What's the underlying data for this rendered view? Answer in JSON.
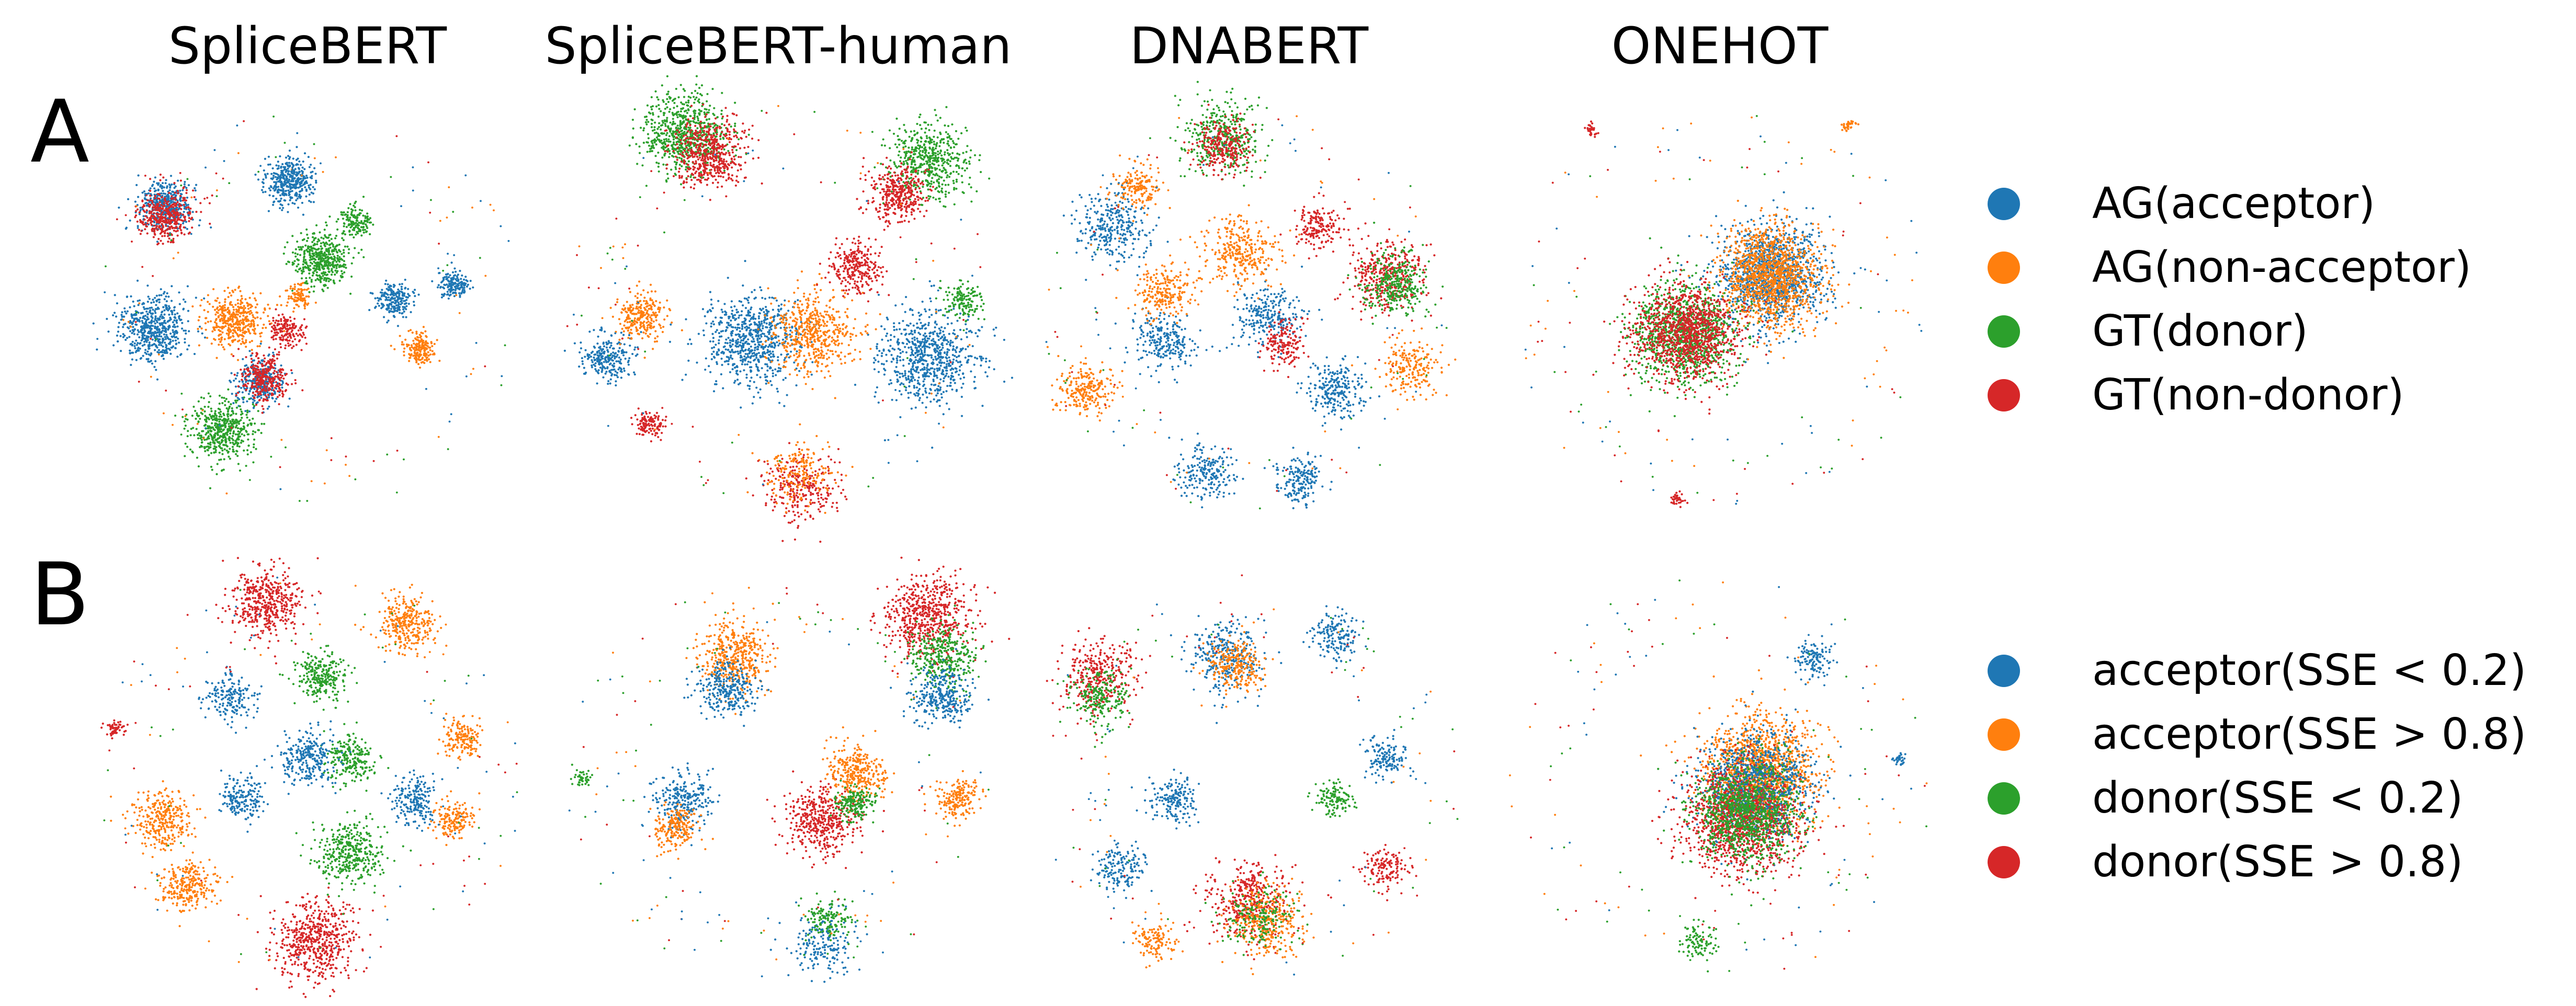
{
  "columns": [
    "SpliceBERT",
    "SpliceBERT-human",
    "DNABERT",
    "ONEHOT"
  ],
  "colors": {
    "blue": "#1f77b4",
    "orange": "#ff7f0e",
    "green": "#2ca02c",
    "red": "#d62728"
  },
  "chart_data": [
    {
      "type": "scatter",
      "panel": "A",
      "title": "",
      "xlabel": "",
      "ylabel": "",
      "axes": "off",
      "grid": false,
      "legend_placement": "right",
      "columns": [
        "SpliceBERT",
        "SpliceBERT-human",
        "DNABERT",
        "ONEHOT"
      ],
      "series": [
        {
          "name": "AG(acceptor)",
          "color": "#1f77b4"
        },
        {
          "name": "AG(non-acceptor)",
          "color": "#ff7f0e"
        },
        {
          "name": "GT(donor)",
          "color": "#2ca02c"
        },
        {
          "name": "GT(non-donor)",
          "color": "#d62728"
        }
      ],
      "clusters": {
        "SpliceBERT": [
          {
            "x": 0.17,
            "y": 0.25,
            "r": 0.055,
            "s": 0,
            "n": 420
          },
          {
            "x": 0.46,
            "y": 0.19,
            "r": 0.05,
            "s": 0,
            "n": 380
          },
          {
            "x": 0.14,
            "y": 0.55,
            "r": 0.075,
            "s": 0,
            "n": 560
          },
          {
            "x": 0.39,
            "y": 0.68,
            "r": 0.05,
            "s": 0,
            "n": 300
          },
          {
            "x": 0.7,
            "y": 0.48,
            "r": 0.04,
            "s": 0,
            "n": 220
          },
          {
            "x": 0.84,
            "y": 0.44,
            "r": 0.03,
            "s": 0,
            "n": 160
          },
          {
            "x": 0.33,
            "y": 0.53,
            "r": 0.06,
            "s": 1,
            "n": 420
          },
          {
            "x": 0.76,
            "y": 0.6,
            "r": 0.035,
            "s": 1,
            "n": 180
          },
          {
            "x": 0.48,
            "y": 0.47,
            "r": 0.025,
            "s": 1,
            "n": 90
          },
          {
            "x": 0.53,
            "y": 0.38,
            "r": 0.06,
            "s": 2,
            "n": 460
          },
          {
            "x": 0.3,
            "y": 0.8,
            "r": 0.065,
            "s": 2,
            "n": 500
          },
          {
            "x": 0.61,
            "y": 0.29,
            "r": 0.035,
            "s": 2,
            "n": 150
          },
          {
            "x": 0.17,
            "y": 0.27,
            "r": 0.055,
            "s": 3,
            "n": 380
          },
          {
            "x": 0.4,
            "y": 0.67,
            "r": 0.05,
            "s": 3,
            "n": 320
          },
          {
            "x": 0.45,
            "y": 0.55,
            "r": 0.035,
            "s": 3,
            "n": 160
          }
        ],
        "SpliceBERT-human": [
          {
            "x": 0.28,
            "y": 0.07,
            "r": 0.09,
            "s": 2,
            "n": 700
          },
          {
            "x": 0.85,
            "y": 0.14,
            "r": 0.08,
            "s": 2,
            "n": 520
          },
          {
            "x": 0.34,
            "y": 0.12,
            "r": 0.075,
            "s": 3,
            "n": 520
          },
          {
            "x": 0.78,
            "y": 0.22,
            "r": 0.06,
            "s": 3,
            "n": 360
          },
          {
            "x": 0.44,
            "y": 0.58,
            "r": 0.1,
            "s": 0,
            "n": 700
          },
          {
            "x": 0.85,
            "y": 0.62,
            "r": 0.1,
            "s": 0,
            "n": 700
          },
          {
            "x": 0.1,
            "y": 0.62,
            "r": 0.05,
            "s": 0,
            "n": 240
          },
          {
            "x": 0.58,
            "y": 0.56,
            "r": 0.09,
            "s": 1,
            "n": 520
          },
          {
            "x": 0.18,
            "y": 0.52,
            "r": 0.05,
            "s": 1,
            "n": 260
          },
          {
            "x": 0.55,
            "y": 0.94,
            "r": 0.08,
            "s": 3,
            "n": 260
          },
          {
            "x": 0.2,
            "y": 0.78,
            "r": 0.03,
            "s": 3,
            "n": 120
          },
          {
            "x": 0.55,
            "y": 0.9,
            "r": 0.07,
            "s": 1,
            "n": 180
          },
          {
            "x": 0.68,
            "y": 0.4,
            "r": 0.06,
            "s": 3,
            "n": 260
          },
          {
            "x": 0.93,
            "y": 0.48,
            "r": 0.04,
            "s": 2,
            "n": 140
          }
        ],
        "DNABERT": [
          {
            "x": 0.44,
            "y": 0.08,
            "r": 0.08,
            "s": 2,
            "n": 380
          },
          {
            "x": 0.44,
            "y": 0.1,
            "r": 0.06,
            "s": 3,
            "n": 260
          },
          {
            "x": 0.82,
            "y": 0.42,
            "r": 0.08,
            "s": 3,
            "n": 380
          },
          {
            "x": 0.84,
            "y": 0.44,
            "r": 0.07,
            "s": 2,
            "n": 320
          },
          {
            "x": 0.18,
            "y": 0.3,
            "r": 0.08,
            "s": 0,
            "n": 300
          },
          {
            "x": 0.3,
            "y": 0.58,
            "r": 0.06,
            "s": 0,
            "n": 240
          },
          {
            "x": 0.55,
            "y": 0.52,
            "r": 0.07,
            "s": 0,
            "n": 260
          },
          {
            "x": 0.7,
            "y": 0.7,
            "r": 0.06,
            "s": 0,
            "n": 240
          },
          {
            "x": 0.4,
            "y": 0.9,
            "r": 0.06,
            "s": 0,
            "n": 200
          },
          {
            "x": 0.62,
            "y": 0.92,
            "r": 0.05,
            "s": 0,
            "n": 180
          },
          {
            "x": 0.12,
            "y": 0.7,
            "r": 0.06,
            "s": 1,
            "n": 220
          },
          {
            "x": 0.48,
            "y": 0.36,
            "r": 0.08,
            "s": 1,
            "n": 320
          },
          {
            "x": 0.3,
            "y": 0.46,
            "r": 0.06,
            "s": 1,
            "n": 220
          },
          {
            "x": 0.66,
            "y": 0.3,
            "r": 0.05,
            "s": 3,
            "n": 180
          },
          {
            "x": 0.58,
            "y": 0.58,
            "r": 0.05,
            "s": 3,
            "n": 160
          },
          {
            "x": 0.88,
            "y": 0.64,
            "r": 0.06,
            "s": 1,
            "n": 200
          },
          {
            "x": 0.24,
            "y": 0.2,
            "r": 0.05,
            "s": 1,
            "n": 160
          }
        ],
        "ONEHOT": [
          {
            "x": 0.62,
            "y": 0.42,
            "r": 0.11,
            "s": 0,
            "n": 1200
          },
          {
            "x": 0.62,
            "y": 0.42,
            "r": 0.11,
            "s": 1,
            "n": 1200
          },
          {
            "x": 0.42,
            "y": 0.56,
            "r": 0.11,
            "s": 2,
            "n": 1100
          },
          {
            "x": 0.42,
            "y": 0.56,
            "r": 0.11,
            "s": 3,
            "n": 1100
          },
          {
            "x": 0.4,
            "y": 0.97,
            "r": 0.015,
            "s": 3,
            "n": 40
          },
          {
            "x": 0.2,
            "y": 0.06,
            "r": 0.015,
            "s": 3,
            "n": 30
          },
          {
            "x": 0.8,
            "y": 0.05,
            "r": 0.015,
            "s": 1,
            "n": 30
          }
        ]
      }
    },
    {
      "type": "scatter",
      "panel": "B",
      "title": "",
      "xlabel": "",
      "ylabel": "",
      "axes": "off",
      "grid": false,
      "legend_placement": "right",
      "columns": [
        "SpliceBERT",
        "SpliceBERT-human",
        "DNABERT",
        "ONEHOT"
      ],
      "series": [
        {
          "name": "acceptor(SSE < 0.2)",
          "color": "#1f77b4"
        },
        {
          "name": "acceptor(SSE > 0.8)",
          "color": "#ff7f0e"
        },
        {
          "name": "donor(SSE < 0.2)",
          "color": "#2ca02c"
        },
        {
          "name": "donor(SSE > 0.8)",
          "color": "#d62728"
        }
      ],
      "clusters": {
        "SpliceBERT": [
          {
            "x": 0.4,
            "y": 0.07,
            "r": 0.075,
            "s": 3,
            "n": 460
          },
          {
            "x": 0.52,
            "y": 0.9,
            "r": 0.085,
            "s": 3,
            "n": 560
          },
          {
            "x": 0.73,
            "y": 0.12,
            "r": 0.06,
            "s": 1,
            "n": 300
          },
          {
            "x": 0.16,
            "y": 0.6,
            "r": 0.06,
            "s": 1,
            "n": 300
          },
          {
            "x": 0.22,
            "y": 0.76,
            "r": 0.055,
            "s": 1,
            "n": 260
          },
          {
            "x": 0.86,
            "y": 0.4,
            "r": 0.04,
            "s": 1,
            "n": 160
          },
          {
            "x": 0.84,
            "y": 0.6,
            "r": 0.04,
            "s": 1,
            "n": 160
          },
          {
            "x": 0.53,
            "y": 0.25,
            "r": 0.05,
            "s": 2,
            "n": 260
          },
          {
            "x": 0.6,
            "y": 0.68,
            "r": 0.07,
            "s": 2,
            "n": 380
          },
          {
            "x": 0.6,
            "y": 0.45,
            "r": 0.05,
            "s": 2,
            "n": 220
          },
          {
            "x": 0.5,
            "y": 0.45,
            "r": 0.06,
            "s": 0,
            "n": 260
          },
          {
            "x": 0.32,
            "y": 0.3,
            "r": 0.05,
            "s": 0,
            "n": 180
          },
          {
            "x": 0.75,
            "y": 0.55,
            "r": 0.05,
            "s": 0,
            "n": 200
          },
          {
            "x": 0.35,
            "y": 0.55,
            "r": 0.05,
            "s": 0,
            "n": 180
          },
          {
            "x": 0.05,
            "y": 0.38,
            "r": 0.02,
            "s": 3,
            "n": 60
          }
        ],
        "SpliceBERT-human": [
          {
            "x": 0.85,
            "y": 0.1,
            "r": 0.09,
            "s": 3,
            "n": 600
          },
          {
            "x": 0.88,
            "y": 0.2,
            "r": 0.07,
            "s": 2,
            "n": 340
          },
          {
            "x": 0.88,
            "y": 0.3,
            "r": 0.06,
            "s": 0,
            "n": 300
          },
          {
            "x": 0.4,
            "y": 0.2,
            "r": 0.075,
            "s": 1,
            "n": 420
          },
          {
            "x": 0.38,
            "y": 0.28,
            "r": 0.06,
            "s": 0,
            "n": 280
          },
          {
            "x": 0.6,
            "y": 0.6,
            "r": 0.075,
            "s": 3,
            "n": 440
          },
          {
            "x": 0.68,
            "y": 0.48,
            "r": 0.06,
            "s": 1,
            "n": 300
          },
          {
            "x": 0.68,
            "y": 0.56,
            "r": 0.04,
            "s": 2,
            "n": 180
          },
          {
            "x": 0.28,
            "y": 0.55,
            "r": 0.06,
            "s": 0,
            "n": 260
          },
          {
            "x": 0.26,
            "y": 0.62,
            "r": 0.05,
            "s": 1,
            "n": 200
          },
          {
            "x": 0.92,
            "y": 0.55,
            "r": 0.045,
            "s": 1,
            "n": 180
          },
          {
            "x": 0.6,
            "y": 0.9,
            "r": 0.07,
            "s": 0,
            "n": 180
          },
          {
            "x": 0.62,
            "y": 0.84,
            "r": 0.05,
            "s": 2,
            "n": 140
          },
          {
            "x": 0.04,
            "y": 0.5,
            "r": 0.02,
            "s": 2,
            "n": 40
          }
        ],
        "DNABERT": [
          {
            "x": 0.15,
            "y": 0.25,
            "r": 0.08,
            "s": 3,
            "n": 340
          },
          {
            "x": 0.15,
            "y": 0.3,
            "r": 0.06,
            "s": 2,
            "n": 220
          },
          {
            "x": 0.45,
            "y": 0.2,
            "r": 0.08,
            "s": 0,
            "n": 320
          },
          {
            "x": 0.47,
            "y": 0.22,
            "r": 0.06,
            "s": 1,
            "n": 240
          },
          {
            "x": 0.7,
            "y": 0.15,
            "r": 0.05,
            "s": 0,
            "n": 160
          },
          {
            "x": 0.5,
            "y": 0.8,
            "r": 0.09,
            "s": 3,
            "n": 400
          },
          {
            "x": 0.54,
            "y": 0.85,
            "r": 0.08,
            "s": 1,
            "n": 320
          },
          {
            "x": 0.52,
            "y": 0.84,
            "r": 0.07,
            "s": 2,
            "n": 180
          },
          {
            "x": 0.32,
            "y": 0.55,
            "r": 0.05,
            "s": 0,
            "n": 180
          },
          {
            "x": 0.2,
            "y": 0.72,
            "r": 0.05,
            "s": 0,
            "n": 160
          },
          {
            "x": 0.82,
            "y": 0.45,
            "r": 0.045,
            "s": 0,
            "n": 140
          },
          {
            "x": 0.82,
            "y": 0.72,
            "r": 0.045,
            "s": 3,
            "n": 140
          },
          {
            "x": 0.28,
            "y": 0.9,
            "r": 0.04,
            "s": 1,
            "n": 120
          },
          {
            "x": 0.7,
            "y": 0.55,
            "r": 0.04,
            "s": 2,
            "n": 120
          }
        ],
        "ONEHOT": [
          {
            "x": 0.6,
            "y": 0.48,
            "r": 0.12,
            "s": 1,
            "n": 1300
          },
          {
            "x": 0.58,
            "y": 0.52,
            "r": 0.12,
            "s": 0,
            "n": 1000
          },
          {
            "x": 0.55,
            "y": 0.6,
            "r": 0.12,
            "s": 3,
            "n": 1200
          },
          {
            "x": 0.56,
            "y": 0.58,
            "r": 0.11,
            "s": 2,
            "n": 1000
          },
          {
            "x": 0.72,
            "y": 0.2,
            "r": 0.04,
            "s": 0,
            "n": 120
          },
          {
            "x": 0.45,
            "y": 0.9,
            "r": 0.04,
            "s": 2,
            "n": 100
          },
          {
            "x": 0.92,
            "y": 0.45,
            "r": 0.015,
            "s": 0,
            "n": 30
          }
        ]
      }
    }
  ],
  "row_labels": [
    "A",
    "B"
  ],
  "legends": {
    "A": [
      "AG(acceptor)",
      "AG(non-acceptor)",
      "GT(donor)",
      "GT(non-donor)"
    ],
    "B": [
      "acceptor(SSE < 0.2)",
      "acceptor(SSE > 0.8)",
      "donor(SSE < 0.2)",
      "donor(SSE > 0.8)"
    ]
  }
}
